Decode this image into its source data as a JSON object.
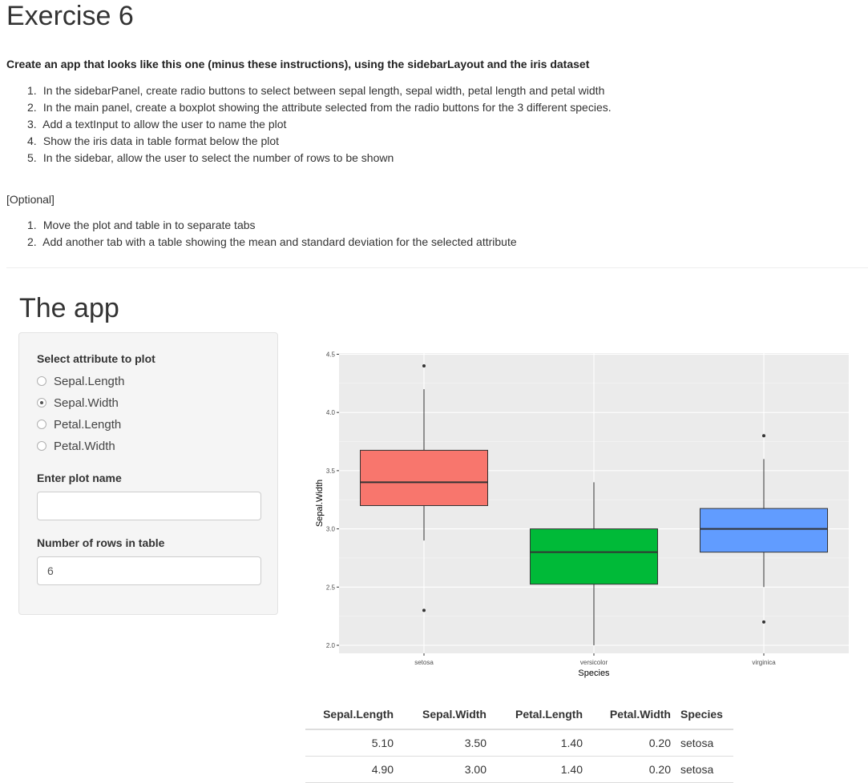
{
  "exercise": {
    "title": "Exercise 6",
    "instructions_title": "Create an app that looks like this one (minus these instructions), using the sidebarLayout and the iris dataset",
    "steps": [
      {
        "num": "1.",
        "text": "In the sidebarPanel, create radio buttons to select between sepal length, sepal width, petal length and petal width"
      },
      {
        "num": "2.",
        "text": "In the main panel, create a boxplot showing the attribute selected from the radio buttons for the 3 different species."
      },
      {
        "num": "3.",
        "text": "Add a textInput to allow the user to name the plot"
      },
      {
        "num": "4.",
        "text": "Show the iris data in table format below the plot"
      },
      {
        "num": "5.",
        "text": "In the sidebar, allow the user to select the number of rows to be shown"
      }
    ],
    "optional_label": "[Optional]",
    "optional_steps": [
      {
        "num": "1.",
        "text": "Move the plot and table in to separate tabs"
      },
      {
        "num": "2.",
        "text": "Add another tab with a table showing the mean and standard deviation for the selected attribute"
      }
    ]
  },
  "app": {
    "title": "The app",
    "sidebar": {
      "attribute_label": "Select attribute to plot",
      "options": [
        "Sepal.Length",
        "Sepal.Width",
        "Petal.Length",
        "Petal.Width"
      ],
      "selected": "Sepal.Width",
      "plot_name_label": "Enter plot name",
      "plot_name_value": "",
      "rows_label": "Number of rows in table",
      "rows_value": "6"
    },
    "table": {
      "headers": [
        "Sepal.Length",
        "Sepal.Width",
        "Petal.Length",
        "Petal.Width",
        "Species"
      ],
      "rows": [
        [
          "5.10",
          "3.50",
          "1.40",
          "0.20",
          "setosa"
        ],
        [
          "4.90",
          "3.00",
          "1.40",
          "0.20",
          "setosa"
        ]
      ]
    }
  },
  "chart_data": {
    "type": "boxplot",
    "xlabel": "Species",
    "ylabel": "Sepal.Width",
    "categories": [
      "setosa",
      "versicolor",
      "virginica"
    ],
    "ylim": [
      2.0,
      4.5
    ],
    "yticks": [
      "2.0",
      "2.5",
      "3.0",
      "3.5",
      "4.0",
      "4.5"
    ],
    "grid": true,
    "boxes": [
      {
        "name": "setosa",
        "color": "#F8766D",
        "whisker_low": 2.9,
        "q1": 3.2,
        "median": 3.4,
        "q3": 3.675,
        "whisker_high": 4.2,
        "outliers": [
          4.4,
          2.3
        ]
      },
      {
        "name": "versicolor",
        "color": "#00BA38",
        "whisker_low": 2.0,
        "q1": 2.525,
        "median": 2.8,
        "q3": 3.0,
        "whisker_high": 3.4,
        "outliers": []
      },
      {
        "name": "virginica",
        "color": "#619CFF",
        "whisker_low": 2.5,
        "q1": 2.8,
        "median": 3.0,
        "q3": 3.175,
        "whisker_high": 3.6,
        "outliers": [
          3.8,
          2.2
        ]
      }
    ]
  }
}
